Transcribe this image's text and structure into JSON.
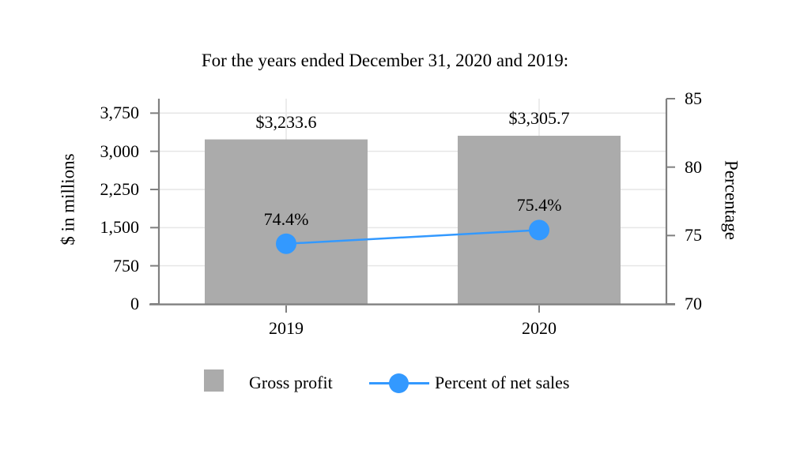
{
  "chart_data": {
    "type": "bar",
    "title": "For the years ended December 31, 2020 and 2019:",
    "categories": [
      "2019",
      "2020"
    ],
    "series": [
      {
        "name": "Gross profit",
        "type": "bar",
        "axis": "left",
        "color": "#ABABAB",
        "values": [
          3233.6,
          3305.7
        ],
        "data_labels": [
          "$3,233.6",
          "$3,305.7"
        ]
      },
      {
        "name": "Percent of net sales",
        "type": "line",
        "axis": "right",
        "color": "#3399FF",
        "values": [
          74.4,
          75.4
        ],
        "data_labels": [
          "74.4%",
          "75.4%"
        ]
      }
    ],
    "left_axis": {
      "label": "$ in millions",
      "ticks": [
        0,
        750,
        1500,
        2250,
        3000,
        3750
      ],
      "tick_labels": [
        "0",
        "750",
        "1,500",
        "2,250",
        "3,000",
        "3,750"
      ],
      "range": [
        0,
        4030
      ]
    },
    "right_axis": {
      "label": "Percentage",
      "ticks": [
        70,
        75,
        80,
        85
      ],
      "tick_labels": [
        "70",
        "75",
        "80",
        "85"
      ],
      "range": [
        70,
        85
      ]
    },
    "grid": true,
    "legend_position": "bottom"
  },
  "legend": {
    "items": [
      {
        "label": "Gross profit",
        "swatch": "gray-square",
        "color": "#ABABAB"
      },
      {
        "label": "Percent of net sales",
        "swatch": "blue-line-dot",
        "color": "#3399FF"
      }
    ]
  },
  "colors": {
    "bar": "#ABABAB",
    "line": "#3399FF",
    "axis": "#808080",
    "grid": "#E6E6E6",
    "text": "#000000",
    "background": "#FFFFFF"
  }
}
